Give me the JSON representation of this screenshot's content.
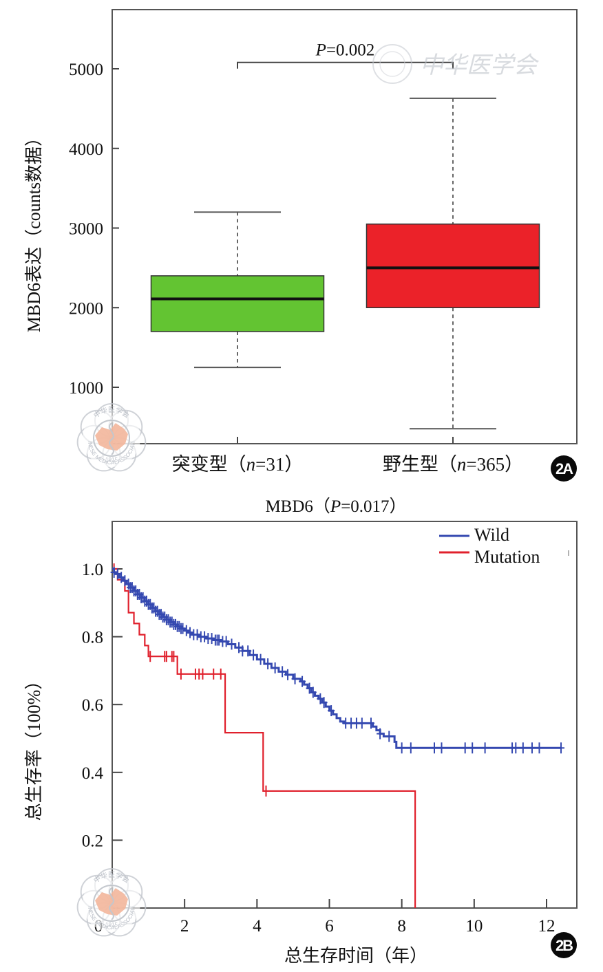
{
  "chart_data": [
    {
      "panel": "2A",
      "type": "box",
      "title": "",
      "xlabel": "",
      "ylabel": "MBD6表达（counts数据）",
      "ylim": [
        290,
        5750
      ],
      "yticks": [
        1000,
        2000,
        3000,
        4000,
        5000
      ],
      "grid": false,
      "categories": [
        {
          "label_main": "突变型（",
          "label_n": "n",
          "label_rest": "=31）",
          "group": "mutation",
          "n": 31,
          "color": "#63c432",
          "whisker_low": 1250,
          "q1": 1700,
          "median": 2110,
          "q3": 2400,
          "whisker_high": 3200
        },
        {
          "label_main": "野生型（",
          "label_n": "n",
          "label_rest": "=365）",
          "group": "wild",
          "n": 365,
          "color": "#eb2229",
          "whisker_low": 480,
          "q1": 2000,
          "median": 2500,
          "q3": 3050,
          "whisker_high": 4630
        }
      ],
      "annotation": {
        "p_label": "P",
        "p_rest": "=0.002",
        "bracket_y": 5080
      },
      "badge": "2A"
    },
    {
      "panel": "2B",
      "type": "line",
      "subtype": "kaplan-meier",
      "title_main": "MBD6（",
      "title_p": "P",
      "title_rest": "=0.017）",
      "xlabel": "总生存时间（年）",
      "ylabel": "总生存率（100%）",
      "xlim": [
        0,
        12.9
      ],
      "ylim": [
        0,
        1.14
      ],
      "xticks": [
        0,
        2,
        4,
        6,
        8,
        10,
        12
      ],
      "yticks": [
        0.2,
        0.4,
        0.6,
        0.8,
        1.0
      ],
      "ytick_labels": [
        "0.2",
        "0.4",
        "0.6",
        "0.8",
        "1.0"
      ],
      "grid": false,
      "legend": {
        "placement": "top-right",
        "entries": [
          {
            "name": "Wild",
            "color": "#3448b0"
          },
          {
            "name": "Mutation",
            "color": "#e0202c"
          }
        ]
      },
      "series": [
        {
          "name": "Wild",
          "color": "#3448b0",
          "steps": [
            [
              0,
              1.0
            ],
            [
              0.05,
              0.99
            ],
            [
              0.1,
              0.985
            ],
            [
              0.2,
              0.975
            ],
            [
              0.3,
              0.965
            ],
            [
              0.4,
              0.955
            ],
            [
              0.5,
              0.945
            ],
            [
              0.6,
              0.935
            ],
            [
              0.7,
              0.925
            ],
            [
              0.8,
              0.915
            ],
            [
              0.9,
              0.905
            ],
            [
              1.0,
              0.895
            ],
            [
              1.1,
              0.885
            ],
            [
              1.2,
              0.875
            ],
            [
              1.3,
              0.866
            ],
            [
              1.4,
              0.858
            ],
            [
              1.5,
              0.85
            ],
            [
              1.6,
              0.843
            ],
            [
              1.7,
              0.836
            ],
            [
              1.8,
              0.83
            ],
            [
              1.9,
              0.824
            ],
            [
              2.0,
              0.818
            ],
            [
              2.1,
              0.812
            ],
            [
              2.2,
              0.806
            ],
            [
              2.4,
              0.8
            ],
            [
              2.6,
              0.795
            ],
            [
              2.8,
              0.79
            ],
            [
              3.0,
              0.786
            ],
            [
              3.2,
              0.778
            ],
            [
              3.4,
              0.768
            ],
            [
              3.6,
              0.758
            ],
            [
              3.8,
              0.746
            ],
            [
              4.0,
              0.733
            ],
            [
              4.2,
              0.72
            ],
            [
              4.4,
              0.708
            ],
            [
              4.6,
              0.697
            ],
            [
              4.8,
              0.688
            ],
            [
              5.0,
              0.676
            ],
            [
              5.2,
              0.668
            ],
            [
              5.3,
              0.659
            ],
            [
              5.4,
              0.648
            ],
            [
              5.5,
              0.636
            ],
            [
              5.6,
              0.626
            ],
            [
              5.7,
              0.617
            ],
            [
              5.8,
              0.606
            ],
            [
              5.9,
              0.594
            ],
            [
              6.0,
              0.582
            ],
            [
              6.1,
              0.571
            ],
            [
              6.2,
              0.56
            ],
            [
              6.3,
              0.55
            ],
            [
              6.4,
              0.545
            ],
            [
              7.0,
              0.545
            ],
            [
              7.2,
              0.535
            ],
            [
              7.3,
              0.524
            ],
            [
              7.4,
              0.514
            ],
            [
              7.5,
              0.506
            ],
            [
              7.6,
              0.506
            ],
            [
              7.8,
              0.49
            ],
            [
              7.85,
              0.472
            ],
            [
              12.4,
              0.472
            ]
          ],
          "censor": [
            0.05,
            0.15,
            0.25,
            0.35,
            0.45,
            0.5,
            0.55,
            0.6,
            0.65,
            0.7,
            0.75,
            0.8,
            0.85,
            0.9,
            0.95,
            1.0,
            1.05,
            1.1,
            1.15,
            1.2,
            1.25,
            1.3,
            1.35,
            1.4,
            1.45,
            1.5,
            1.55,
            1.6,
            1.65,
            1.7,
            1.75,
            1.8,
            1.85,
            1.9,
            1.95,
            2.05,
            2.15,
            2.25,
            2.35,
            2.45,
            2.55,
            2.65,
            2.75,
            2.85,
            2.9,
            2.95,
            3.05,
            3.15,
            3.3,
            3.5,
            3.6,
            3.75,
            3.9,
            4.1,
            4.3,
            4.5,
            4.7,
            4.85,
            5.05,
            5.25,
            5.45,
            5.55,
            5.75,
            5.85,
            6.05,
            6.45,
            6.6,
            6.75,
            6.9,
            7.15,
            7.4,
            7.65,
            8.0,
            8.25,
            8.9,
            9.1,
            9.75,
            9.95,
            10.3,
            11.05,
            11.15,
            11.35,
            11.6,
            11.8,
            12.4
          ]
        },
        {
          "name": "Mutation",
          "color": "#e0202c",
          "steps": [
            [
              0,
              1.0
            ],
            [
              0.1,
              1.0
            ],
            [
              0.15,
              0.968
            ],
            [
              0.35,
              0.935
            ],
            [
              0.45,
              0.871
            ],
            [
              0.6,
              0.839
            ],
            [
              0.75,
              0.806
            ],
            [
              0.9,
              0.774
            ],
            [
              1.0,
              0.742
            ],
            [
              1.75,
              0.742
            ],
            [
              1.8,
              0.69
            ],
            [
              3.1,
              0.69
            ],
            [
              3.12,
              0.517
            ],
            [
              4.15,
              0.517
            ],
            [
              4.17,
              0.345
            ],
            [
              8.35,
              0.345
            ],
            [
              8.37,
              0.0
            ]
          ],
          "censor": [
            0.05,
            1.05,
            1.45,
            1.5,
            1.65,
            1.7,
            1.9,
            2.3,
            2.4,
            2.5,
            2.8,
            3.0,
            4.25
          ]
        }
      ],
      "badge": "2B"
    }
  ],
  "watermark": {
    "top_text": "中华医学会",
    "seal_text_top": "中华医学会",
    "seal_text_bottom": "CHINESE MEDICAL ASSOCIATION",
    "seal_year": "1915"
  }
}
